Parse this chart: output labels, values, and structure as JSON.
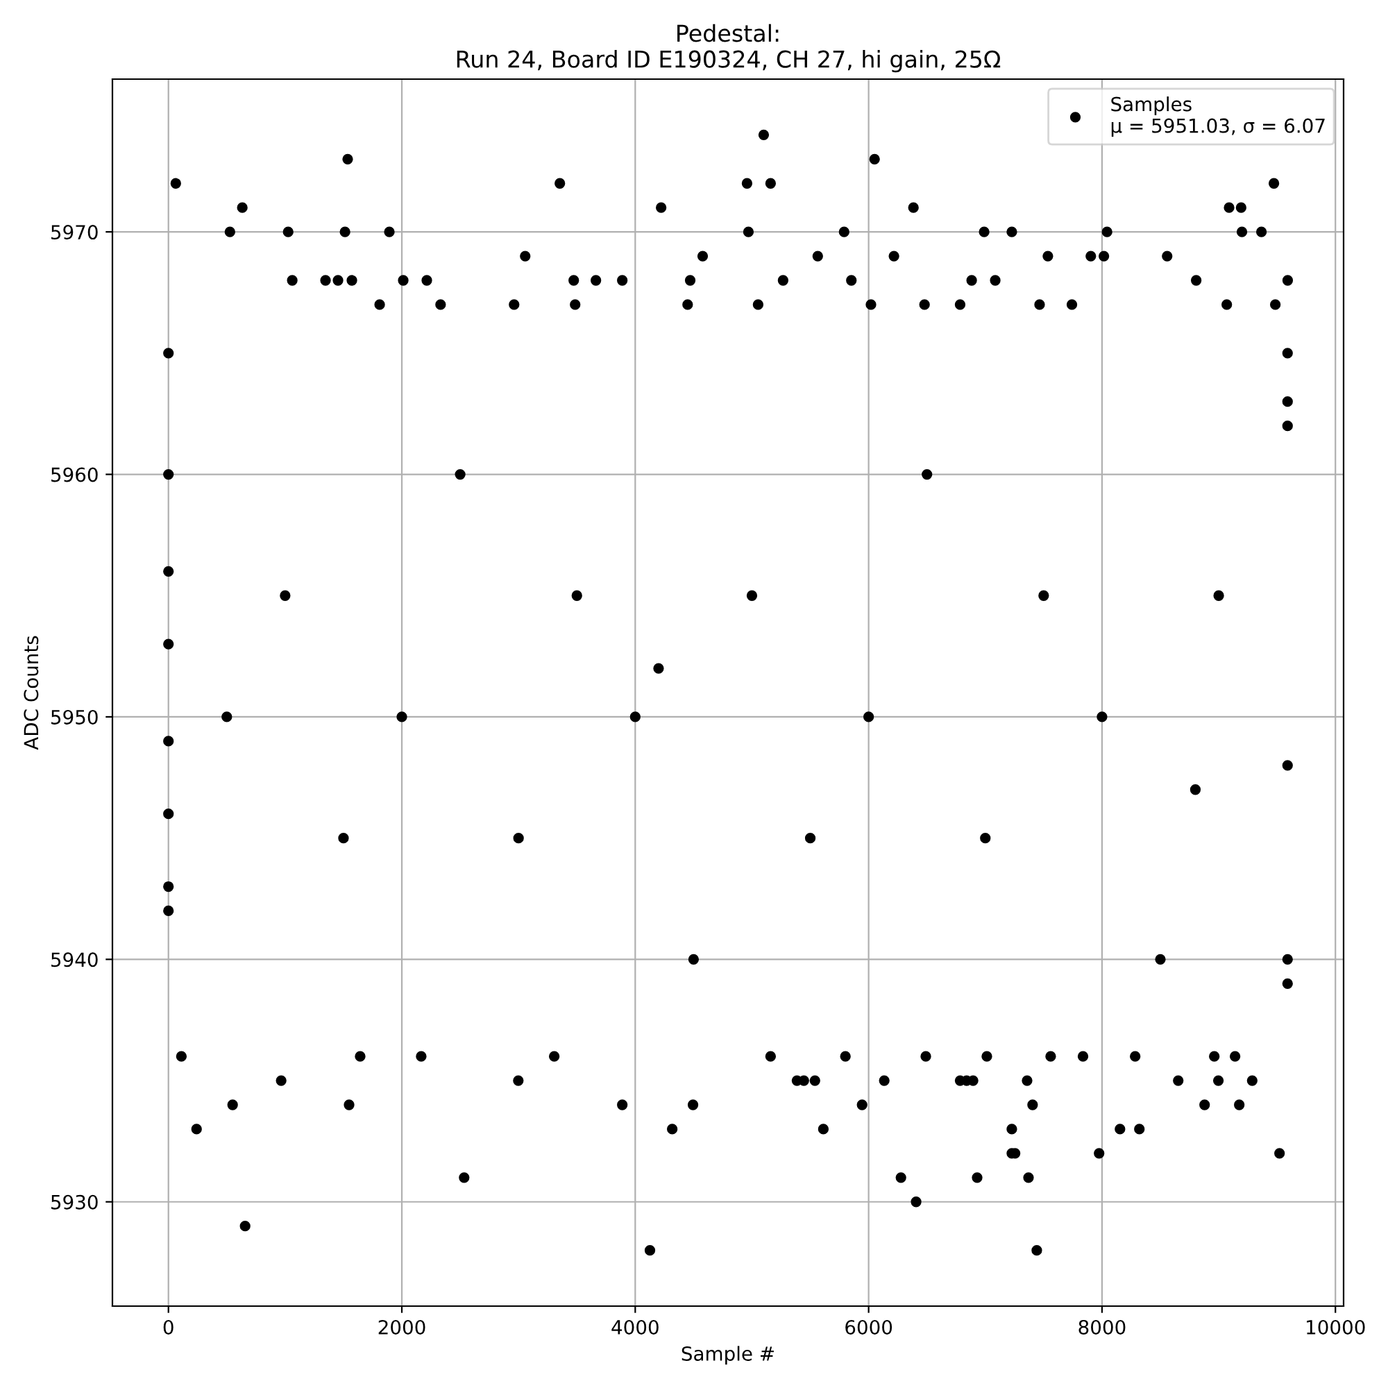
{
  "chart_data": {
    "type": "scatter",
    "title": "Pedestal:\nRun 24, Board ID E190324, CH 27, hi gain, 25Ω",
    "xlabel": "Sample #",
    "ylabel": "ADC Counts",
    "xlim": [
      -480,
      10070
    ],
    "ylim": [
      5925.7,
      5976.3
    ],
    "xticks": [
      0,
      2000,
      4000,
      6000,
      8000,
      10000
    ],
    "yticks": [
      5930,
      5940,
      5950,
      5960,
      5970
    ],
    "grid": true,
    "legend": "top right",
    "marker": "circle",
    "series": [
      {
        "name": "Samples\nμ = 5951.03, σ = 6.07",
        "color": "#000000",
        "x": [
          63,
          1536,
          633,
          527,
          1026,
          1513,
          1893,
          3354,
          4222,
          3057,
          4578,
          1061,
          1346,
          1453,
          1572,
          2012,
          2214,
          3473,
          3663,
          3889,
          4471,
          5101,
          4958,
          5160,
          4970,
          5790,
          6051,
          6384,
          6990,
          7227,
          8043,
          9473,
          9089,
          9192,
          9199,
          9366,
          5564,
          6217,
          7536,
          7904,
          8016,
          8558,
          5267,
          5852,
          6883,
          7085,
          8807,
          9591,
          1810,
          2332,
          2962,
          3485,
          4449,
          5053,
          6020,
          6479,
          6784,
          7465,
          7742,
          9069,
          9485,
          111,
          1643,
          2166,
          3306,
          5160,
          5801,
          6490,
          7013,
          7560,
          7837,
          8284,
          8962,
          9140,
          241,
          550,
          657,
          966,
          1548,
          2534,
          2998,
          3889,
          4126,
          4317,
          4495,
          5386,
          5445,
          5540,
          5612,
          5944,
          6134,
          6277,
          6407,
          6784,
          6840,
          6895,
          6930,
          7227,
          7227,
          7255,
          7358,
          7370,
          7405,
          7441,
          7975,
          8154,
          8320,
          8653,
          8879,
          8997,
          9176,
          9287,
          9521,
          0,
          0,
          0,
          0,
          0,
          0,
          0,
          0,
          9590,
          9590,
          9590,
          9590,
          9590,
          9590,
          1000,
          2000,
          3000,
          4000,
          5000,
          6000,
          7000,
          8000,
          9000,
          2500,
          4500,
          6500,
          8500,
          1500,
          3500,
          5500,
          7500,
          500,
          8800,
          4200
        ],
        "values": [
          5972,
          5973,
          5971,
          5970,
          5970,
          5970,
          5970,
          5972,
          5971,
          5969,
          5969,
          5968,
          5968,
          5968,
          5968,
          5968,
          5968,
          5968,
          5968,
          5968,
          5968,
          5974,
          5972,
          5972,
          5970,
          5970,
          5973,
          5971,
          5970,
          5970,
          5970,
          5972,
          5971,
          5971,
          5970,
          5970,
          5969,
          5969,
          5969,
          5969,
          5969,
          5969,
          5968,
          5968,
          5968,
          5968,
          5968,
          5968,
          5967,
          5967,
          5967,
          5967,
          5967,
          5967,
          5967,
          5967,
          5967,
          5967,
          5967,
          5967,
          5967,
          5936,
          5936,
          5936,
          5936,
          5936,
          5936,
          5936,
          5936,
          5936,
          5936,
          5936,
          5936,
          5936,
          5933,
          5934,
          5929,
          5935,
          5934,
          5931,
          5935,
          5934,
          5928,
          5933,
          5934,
          5935,
          5935,
          5935,
          5933,
          5934,
          5935,
          5931,
          5930,
          5935,
          5935,
          5935,
          5931,
          5933,
          5932,
          5932,
          5935,
          5931,
          5934,
          5928,
          5932,
          5933,
          5933,
          5935,
          5934,
          5935,
          5934,
          5935,
          5932,
          5965,
          5960,
          5956,
          5953,
          5949,
          5946,
          5943,
          5942,
          5965,
          5963,
          5962,
          5948,
          5940,
          5939,
          5955,
          5950,
          5945,
          5950,
          5955,
          5950,
          5945,
          5950,
          5955,
          5960,
          5940,
          5960,
          5940,
          5945,
          5955,
          5945,
          5955,
          5950,
          5947,
          5952
        ]
      }
    ]
  }
}
